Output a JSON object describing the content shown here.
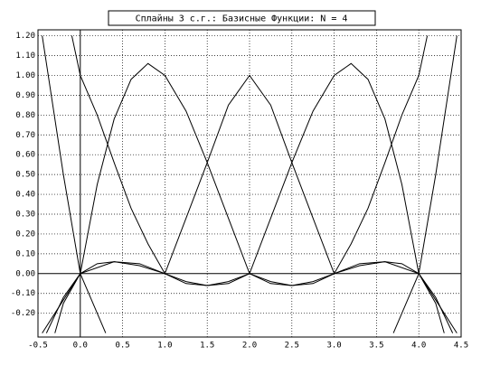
{
  "chart_data": {
    "type": "line",
    "title": "Сплайны 3 с.г.: Базисные Функции: N = 4",
    "xlim": [
      -0.5,
      4.5
    ],
    "ylim": [
      -0.32,
      1.23
    ],
    "xticks": [
      {
        "value": -0.5,
        "label": "-0.5"
      },
      {
        "value": 0,
        "label": "0.0"
      },
      {
        "value": 0.5,
        "label": "0.5"
      },
      {
        "value": 1,
        "label": "1.0"
      },
      {
        "value": 1.5,
        "label": "1.5"
      },
      {
        "value": 2,
        "label": "2.0"
      },
      {
        "value": 2.5,
        "label": "2.5"
      },
      {
        "value": 3,
        "label": "3.0"
      },
      {
        "value": 3.5,
        "label": "3.5"
      },
      {
        "value": 4,
        "label": "4.0"
      },
      {
        "value": 4.5,
        "label": "4.5"
      }
    ],
    "yticks": [
      {
        "value": -0.2,
        "label": "-0.20"
      },
      {
        "value": -0.1,
        "label": "-0.10"
      },
      {
        "value": 0,
        "label": "0.00"
      },
      {
        "value": 0.1,
        "label": "0.10"
      },
      {
        "value": 0.2,
        "label": "0.20"
      },
      {
        "value": 0.3,
        "label": "0.30"
      },
      {
        "value": 0.4,
        "label": "0.40"
      },
      {
        "value": 0.5,
        "label": "0.50"
      },
      {
        "value": 0.6,
        "label": "0.60"
      },
      {
        "value": 0.7,
        "label": "0.70"
      },
      {
        "value": 0.8,
        "label": "0.80"
      },
      {
        "value": 0.9,
        "label": "0.90"
      },
      {
        "value": 1,
        "label": "1.00"
      },
      {
        "value": 1.1,
        "label": "1.10"
      },
      {
        "value": 1.2,
        "label": "1.20"
      }
    ],
    "grid": true,
    "series": [
      {
        "color": "#000000",
        "x": [
          -0.1,
          -0.05,
          0,
          0.2,
          0.4,
          0.6,
          0.8,
          1,
          1.25,
          1.5,
          1.75,
          2,
          3,
          3.7,
          3.85,
          4,
          4.2,
          4.45
        ],
        "values": [
          1.2,
          1.1,
          1.0,
          0.8,
          0.56,
          0.33,
          0.15,
          0,
          -0.05,
          -0.06,
          -0.04,
          0,
          null,
          -0.3,
          -0.15,
          0,
          0.5,
          1.2
        ]
      },
      {
        "color": "#000000",
        "x": [
          -0.45,
          -0.3,
          0,
          0.2,
          0.4,
          0.6,
          0.8,
          1,
          1.25,
          1.5,
          1.75,
          2,
          2.25,
          2.5,
          2.75,
          3,
          3.3,
          3.6,
          4,
          4.2,
          4.3
        ],
        "values": [
          -0.3,
          -0.2,
          0,
          0.45,
          0.78,
          0.98,
          1.06,
          1.0,
          0.82,
          0.56,
          0.28,
          0,
          -0.05,
          -0.06,
          -0.04,
          0,
          0.05,
          0.06,
          0,
          -0.15,
          -0.3
        ]
      },
      {
        "color": "#000000",
        "x": [
          -0.4,
          -0.2,
          0,
          0.2,
          0.4,
          0.7,
          1,
          1.25,
          1.5,
          1.75,
          2,
          2.25,
          2.5,
          2.75,
          3,
          3.3,
          3.6,
          3.8,
          4,
          4.2,
          4.4
        ],
        "values": [
          -0.3,
          -0.12,
          0,
          0.05,
          0.06,
          0.04,
          0,
          0.28,
          0.56,
          0.85,
          1.0,
          0.85,
          0.56,
          0.28,
          0,
          0.04,
          0.06,
          0.05,
          0,
          -0.12,
          -0.3
        ]
      },
      {
        "color": "#000000",
        "x": [
          -0.3,
          -0.2,
          0,
          0.4,
          0.7,
          1,
          1.25,
          1.5,
          1.75,
          2,
          2.25,
          2.5,
          2.75,
          3,
          3.2,
          3.4,
          3.6,
          3.8,
          4,
          4.3,
          4.45
        ],
        "values": [
          -0.3,
          -0.15,
          0,
          0.06,
          0.05,
          0,
          -0.04,
          -0.06,
          -0.05,
          0,
          0.28,
          0.56,
          0.82,
          1.0,
          1.06,
          0.98,
          0.78,
          0.45,
          0,
          -0.2,
          -0.3
        ]
      },
      {
        "color": "#000000",
        "x": [
          -0.45,
          -0.2,
          0,
          0.15,
          0.3,
          1,
          2,
          2.25,
          2.5,
          2.75,
          3,
          3.2,
          3.4,
          3.6,
          3.8,
          4,
          4.05,
          4.1
        ],
        "values": [
          1.2,
          0.5,
          0,
          -0.15,
          -0.3,
          null,
          0,
          -0.04,
          -0.06,
          -0.05,
          0,
          0.15,
          0.33,
          0.56,
          0.8,
          1.0,
          1.1,
          1.2
        ]
      }
    ]
  }
}
